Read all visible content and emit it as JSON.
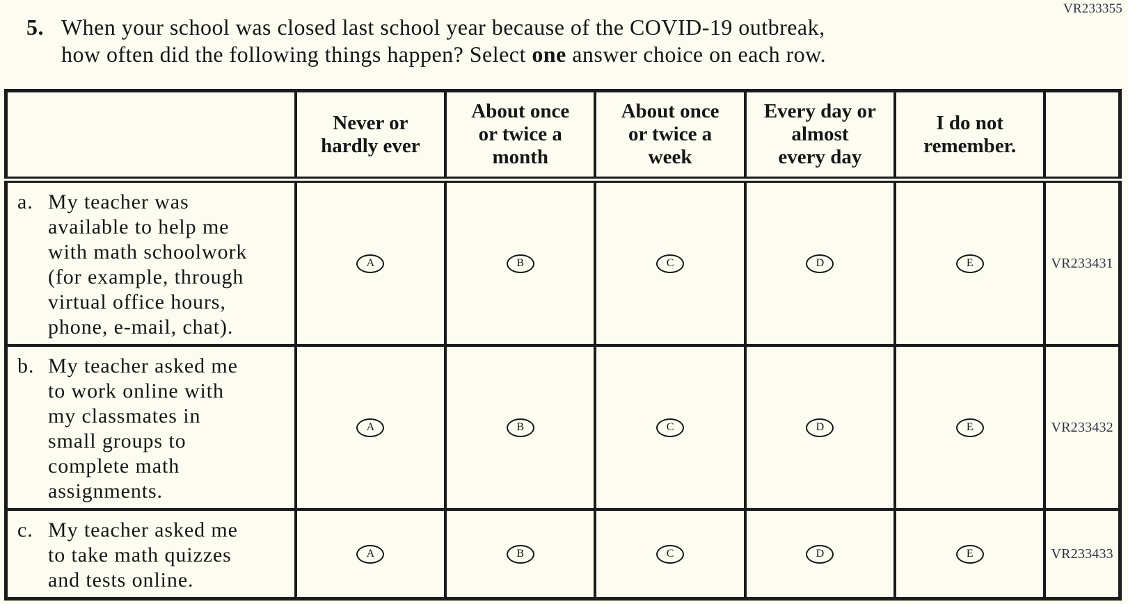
{
  "colors": {
    "background": "#fdfcf1",
    "ink": "#161616",
    "border": "#1b1b1b",
    "code_text": "#2a3340"
  },
  "page_code": "VR233355",
  "question": {
    "number": "5.",
    "line1": "When your school was closed last school year because of the COVID-19 outbreak,",
    "line2_before": "how often did the following things happen? Select ",
    "line2_bold": "one",
    "line2_after": " answer choice on each row."
  },
  "table": {
    "column_headers": [
      "Never or\nhardly ever",
      "About once\nor twice a\nmonth",
      "About once\nor twice a\nweek",
      "Every day or\nalmost\nevery day",
      "I do not\nremember."
    ],
    "options": [
      "A",
      "B",
      "C",
      "D",
      "E"
    ],
    "rows": [
      {
        "letter": "a.",
        "text": "My teacher was\navailable to help me\nwith math schoolwork\n(for example, through\nvirtual office hours,\nphone, e-mail, chat).",
        "code": "VR233431"
      },
      {
        "letter": "b.",
        "text": "My teacher asked me\nto work online with\nmy classmates in\nsmall groups to\ncomplete math\nassignments.",
        "code": "VR233432"
      },
      {
        "letter": "c.",
        "text": "My teacher asked me\nto take math quizzes\nand tests online.",
        "code": "VR233433"
      }
    ]
  }
}
